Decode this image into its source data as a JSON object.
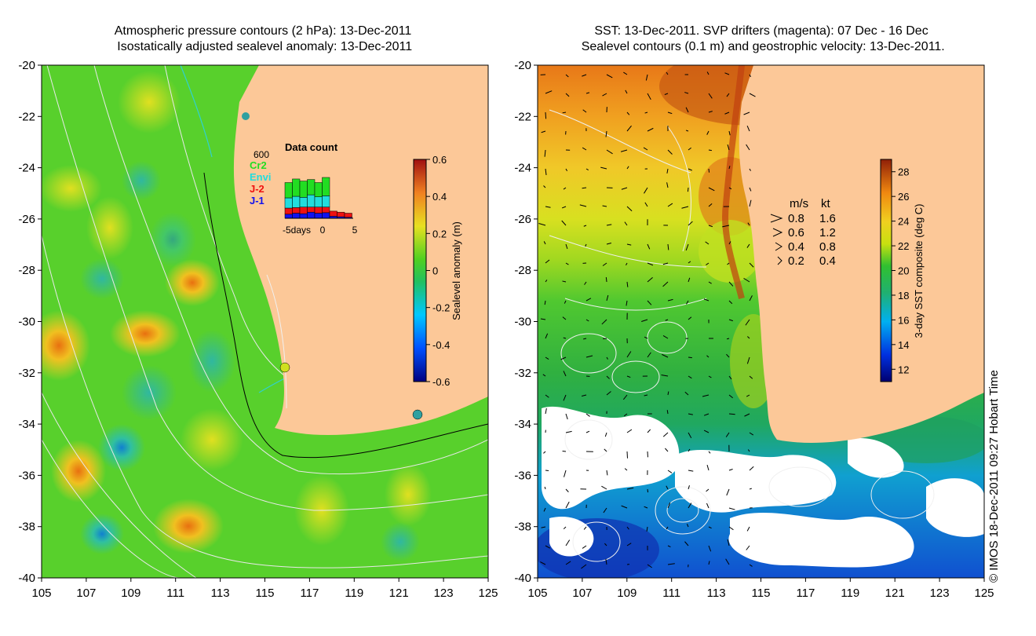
{
  "titles": {
    "left": "Atmospheric pressure contours (2 hPa): 13-Dec-2011\n Isostatically adjusted sealevel anomaly: 13-Dec-2011",
    "right": "SST: 13-Dec-2011. SVP drifters (magenta): 07 Dec - 16 Dec\n Sealevel contours (0.1 m) and geostrophic velocity: 13-Dec-2011."
  },
  "credit": "© IMOS 18-Dec-2011 09:27 Hobart Time",
  "colors": {
    "land": "#fcc898",
    "ocean_left": "#58d02c",
    "ocean_right_warm": "#f0a020",
    "cloud": "#ffffff"
  },
  "chart_data": [
    {
      "type": "heatmap",
      "title": "Atmospheric pressure contours (2 hPa): 13-Dec-2011 / Isostatically adjusted sealevel anomaly: 13-Dec-2011",
      "xlim": [
        105,
        125
      ],
      "ylim": [
        -40,
        -20
      ],
      "xticks": [
        "105",
        "107",
        "109",
        "111",
        "113",
        "115",
        "117",
        "119",
        "121",
        "123",
        "125"
      ],
      "yticks": [
        "-20",
        "-22",
        "-24",
        "-26",
        "-28",
        "-30",
        "-32",
        "-34",
        "-36",
        "-38",
        "-40"
      ],
      "colorbar": {
        "label": "Sealevel anomaly (m)",
        "range": [
          -0.6,
          0.6
        ],
        "ticks": [
          "0.6",
          "0.4",
          "0.2",
          "0",
          "-0.2",
          "-0.4",
          "-0.6"
        ]
      },
      "inset": {
        "title": "Data count",
        "ymax_label": "600",
        "xlabels": [
          "-5days",
          "0",
          "5"
        ],
        "legend": [
          {
            "name": "Cr2",
            "color": "#22dd22"
          },
          {
            "name": "Envi",
            "color": "#22dddd"
          },
          {
            "name": "J-2",
            "color": "#ee1111"
          },
          {
            "name": "J-1",
            "color": "#1111ee"
          }
        ],
        "days": [
          -5,
          -4,
          -3,
          -2,
          -1,
          0,
          1,
          2,
          3
        ],
        "series": [
          {
            "name": "J-1",
            "values": [
              40,
              50,
              45,
              60,
              50,
              55,
              20,
              15,
              10
            ]
          },
          {
            "name": "J-2",
            "values": [
              60,
              55,
              65,
              50,
              60,
              55,
              50,
              45,
              40
            ]
          },
          {
            "name": "Envi",
            "values": [
              100,
              110,
              95,
              120,
              100,
              110,
              0,
              0,
              0
            ]
          },
          {
            "name": "Cr2",
            "values": [
              150,
              170,
              160,
              150,
              140,
              180,
              0,
              0,
              0
            ]
          }
        ]
      }
    },
    {
      "type": "heatmap",
      "title": "SST: 13-Dec-2011. SVP drifters (magenta): 07 Dec - 16 Dec / Sealevel contours (0.1 m) and geostrophic velocity: 13-Dec-2011.",
      "xlim": [
        105,
        125
      ],
      "ylim": [
        -40,
        -20
      ],
      "xticks": [
        "105",
        "107",
        "109",
        "111",
        "113",
        "115",
        "117",
        "119",
        "121",
        "123",
        "125"
      ],
      "yticks": [
        "-20",
        "-22",
        "-24",
        "-26",
        "-28",
        "-30",
        "-32",
        "-34",
        "-36",
        "-38",
        "-40"
      ],
      "colorbar": {
        "label": "3-day SST composite (deg C)",
        "range": [
          11,
          29
        ],
        "ticks": [
          "28",
          "26",
          "24",
          "22",
          "20",
          "18",
          "16",
          "14",
          "12"
        ]
      },
      "velocity_legend": {
        "header": [
          "m/s",
          "kt"
        ],
        "rows": [
          [
            "0.8",
            "1.6"
          ],
          [
            "0.6",
            "1.2"
          ],
          [
            "0.4",
            "0.8"
          ],
          [
            "0.2",
            "0.4"
          ]
        ]
      }
    }
  ]
}
